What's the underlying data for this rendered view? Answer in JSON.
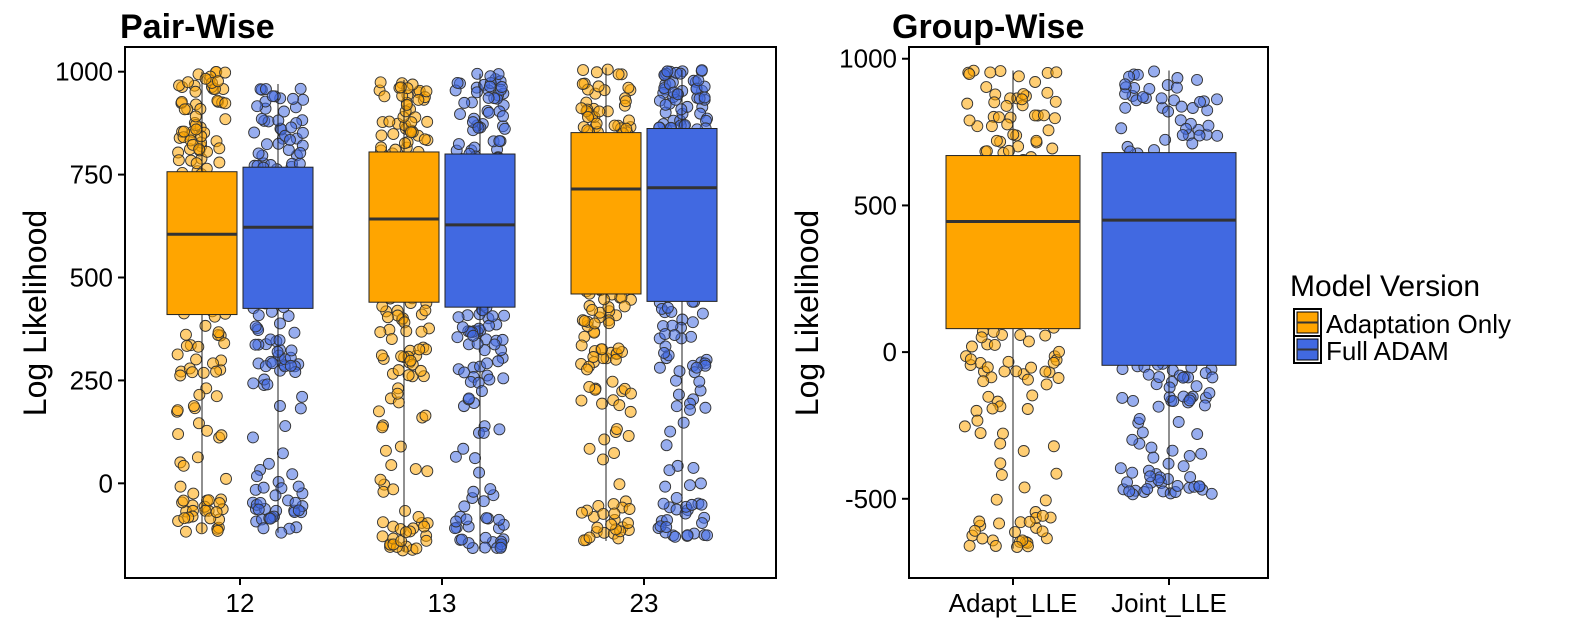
{
  "colors": {
    "adaptation_only": "#FFA500",
    "full_adam": "#4169E1",
    "median_line": "#333333",
    "panel_border": "#000000"
  },
  "legend": {
    "title": "Model Version",
    "entries": [
      "Adaptation Only",
      "Full ADAM"
    ],
    "position": "right"
  },
  "chart_data": [
    {
      "type": "boxplot",
      "title": "Pair-Wise",
      "xlabel": "",
      "ylabel": "Log Likelihood",
      "ylim": [
        -230,
        1060
      ],
      "yticks": [
        0,
        250,
        500,
        750,
        1000
      ],
      "categories": [
        "12",
        "13",
        "23"
      ],
      "grid": false,
      "series": [
        {
          "name": "Adaptation Only",
          "color": "#FFA500",
          "boxes": [
            {
              "category": "12",
              "q1": 410,
              "median": 605,
              "q3": 757,
              "whisker_low": -120,
              "whisker_high": 1000
            },
            {
              "category": "13",
              "q1": 440,
              "median": 642,
              "q3": 805,
              "whisker_low": -165,
              "whisker_high": 980
            },
            {
              "category": "23",
              "q1": 460,
              "median": 715,
              "q3": 852,
              "whisker_low": -140,
              "whisker_high": 1010
            }
          ]
        },
        {
          "name": "Full ADAM",
          "color": "#4169E1",
          "boxes": [
            {
              "category": "12",
              "q1": 425,
              "median": 622,
              "q3": 768,
              "whisker_low": -120,
              "whisker_high": 970
            },
            {
              "category": "13",
              "q1": 428,
              "median": 628,
              "q3": 800,
              "whisker_low": -165,
              "whisker_high": 995
            },
            {
              "category": "23",
              "q1": 442,
              "median": 718,
              "q3": 862,
              "whisker_low": -130,
              "whisker_high": 1005
            }
          ]
        }
      ]
    },
    {
      "type": "boxplot",
      "title": "Group-Wise",
      "xlabel": "",
      "ylabel": "Log Likelihood",
      "ylim": [
        -770,
        1040
      ],
      "yticks": [
        -500,
        0,
        500,
        1000
      ],
      "categories": [
        "Adapt_LLE",
        "Joint_LLE"
      ],
      "grid": false,
      "series": [
        {
          "name": "Adaptation Only",
          "color": "#FFA500",
          "boxes": [
            {
              "category": "Adapt_LLE",
              "q1": 80,
              "median": 445,
              "q3": 670,
              "whisker_low": -670,
              "whisker_high": 960
            }
          ]
        },
        {
          "name": "Full ADAM",
          "color": "#4169E1",
          "boxes": [
            {
              "category": "Joint_LLE",
              "q1": -45,
              "median": 450,
              "q3": 680,
              "whisker_low": -490,
              "whisker_high": 960
            }
          ]
        }
      ]
    }
  ]
}
